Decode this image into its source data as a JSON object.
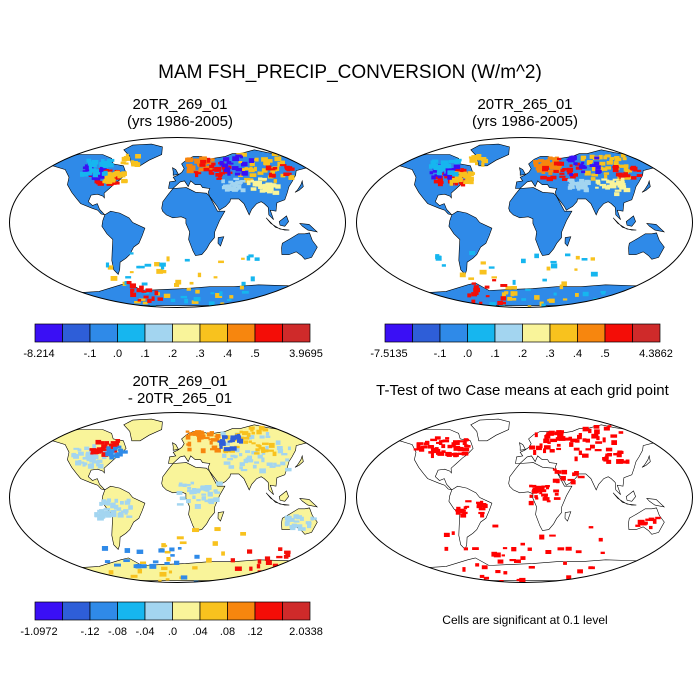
{
  "figure": {
    "title": "MAM FSH_PRECIP_CONVERSION (W/m^2)"
  },
  "panels": [
    {
      "title_line1": "20TR_269_01",
      "title_line2": "(yrs 1986-2005)",
      "colorbar": {
        "colors": [
          "#3a0ff5",
          "#2e5ed8",
          "#2f8ae8",
          "#16b6ef",
          "#a3d5f0",
          "#f9f49a",
          "#f8c21e",
          "#f7860e",
          "#f40d07",
          "#cf2a2a"
        ],
        "labels": [
          "-8.214",
          "-.1",
          ".0",
          ".1",
          ".2",
          ".3",
          ".4",
          ".5",
          "3.9695"
        ]
      }
    },
    {
      "title_line1": "20TR_265_01",
      "title_line2": "(yrs 1986-2005)",
      "colorbar": {
        "colors": [
          "#3a0ff5",
          "#2e5ed8",
          "#2f8ae8",
          "#16b6ef",
          "#a3d5f0",
          "#f9f49a",
          "#f8c21e",
          "#f7860e",
          "#f40d07",
          "#cf2a2a"
        ],
        "labels": [
          "-7.5135",
          "-.1",
          ".0",
          ".1",
          ".2",
          ".3",
          ".4",
          ".5",
          "4.3862"
        ]
      }
    },
    {
      "title_line1": "20TR_269_01",
      "title_line2": "- 20TR_265_01",
      "colorbar": {
        "colors": [
          "#3a0ff5",
          "#2e5ed8",
          "#2f8ae8",
          "#16b6ef",
          "#a3d5f0",
          "#f9f49a",
          "#f8c21e",
          "#f7860e",
          "#f40d07",
          "#cf2a2a"
        ],
        "labels": [
          "-1.0972",
          "-.12",
          "-.08",
          "-.04",
          ".0",
          ".04",
          ".08",
          ".12",
          "2.0338"
        ]
      }
    },
    {
      "title_line1": "T-Test of two Case means at each grid point",
      "note": "Cells are significant at 0.1 level"
    }
  ],
  "chart_data": [
    {
      "type": "heatmap",
      "projection": "Robinson",
      "title": "20TR_269_01 (yrs 1986-2005)",
      "colorbar_labels": [
        "-8.214",
        "-.1",
        ".0",
        ".1",
        ".2",
        ".3",
        ".4",
        ".5",
        "3.9695"
      ],
      "dominant_land_value_range": [
        0.0,
        0.1
      ],
      "high_value_regions": [
        "eastern North America",
        "Hudson Bay",
        "northern Europe",
        "northern Asia",
        "Antarctic coast"
      ]
    },
    {
      "type": "heatmap",
      "projection": "Robinson",
      "title": "20TR_265_01 (yrs 1986-2005)",
      "colorbar_labels": [
        "-7.5135",
        "-.1",
        ".0",
        ".1",
        ".2",
        ".3",
        ".4",
        ".5",
        "4.3862"
      ],
      "dominant_land_value_range": [
        0.0,
        0.1
      ],
      "high_value_regions": [
        "eastern North America",
        "Hudson Bay",
        "northern Europe",
        "northern Asia",
        "Antarctic coast"
      ]
    },
    {
      "type": "heatmap",
      "projection": "Robinson",
      "title": "20TR_269_01 - 20TR_265_01",
      "colorbar_labels": [
        "-1.0972",
        "-.12",
        "-.08",
        "-.04",
        ".0",
        ".04",
        ".08",
        ".12",
        "2.0338"
      ],
      "dominant_land_value_range": [
        -0.04,
        0.04
      ]
    },
    {
      "type": "heatmap",
      "projection": "Robinson",
      "title": "T-Test of two Case means at each grid point",
      "significance_level": 0.1,
      "significant_color": "#ff0000"
    }
  ]
}
